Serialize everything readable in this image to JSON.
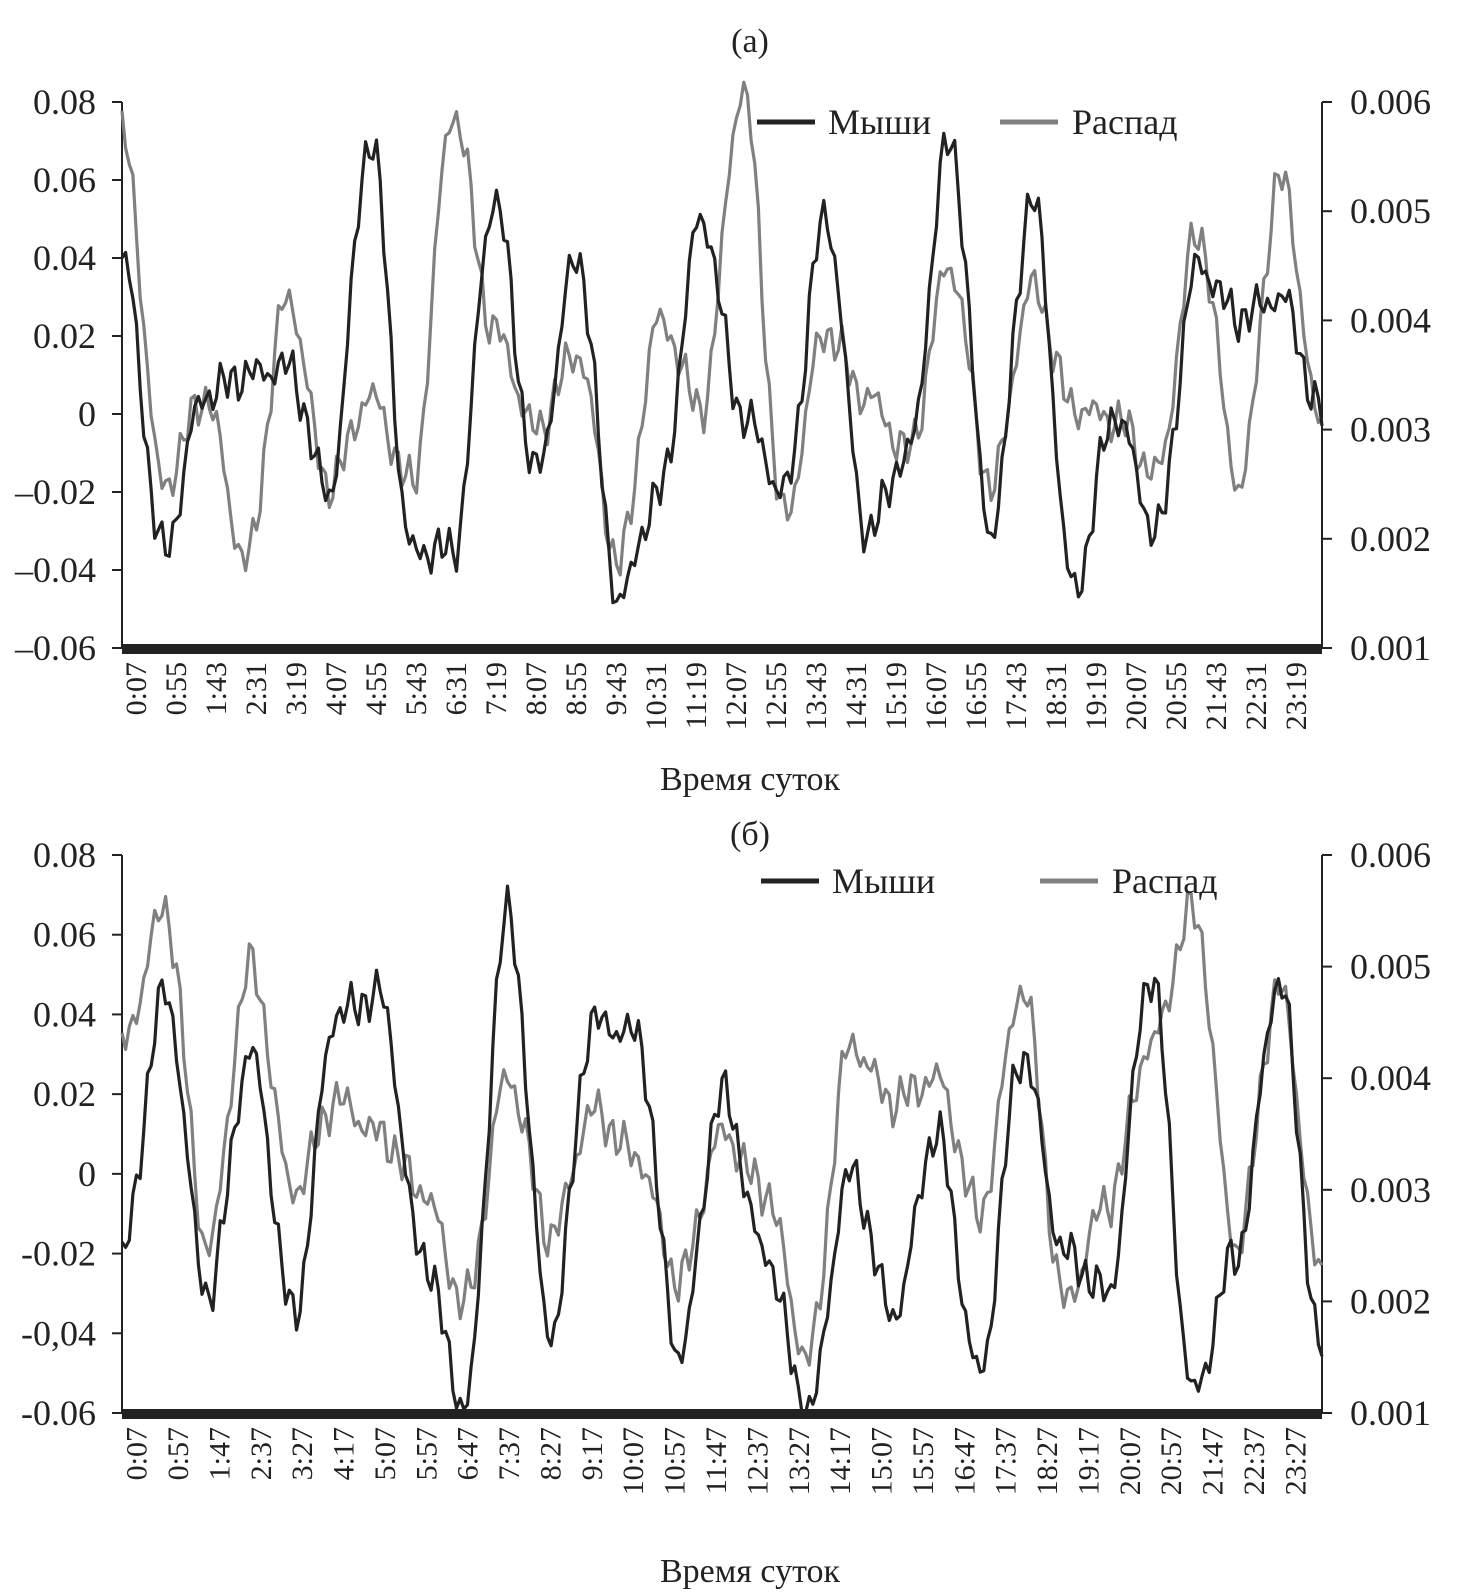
{
  "chart_data": [
    {
      "type": "line",
      "panel_label": "(а)",
      "xlabel": "Время суток",
      "x_tick_labels": [
        "0:07",
        "0:55",
        "1:43",
        "2:31",
        "3:19",
        "4:07",
        "4:55",
        "5:43",
        "6:31",
        "7:19",
        "8:07",
        "8:55",
        "9:43",
        "10:31",
        "11:19",
        "12:07",
        "12:55",
        "13:43",
        "14:31",
        "15:19",
        "16:07",
        "16:55",
        "17:43",
        "18:31",
        "19:19",
        "20:07",
        "20:55",
        "21:43",
        "22:31",
        "23:19"
      ],
      "y_left": {
        "range": [
          -0.06,
          0.08
        ],
        "ticks": [
          0.08,
          0.06,
          0.04,
          0.02,
          0,
          -0.02,
          -0.04,
          -0.06
        ],
        "tick_labels": [
          "0.08",
          "0.06",
          "0.04",
          "0.02",
          "0",
          "–0.02",
          "–0.04",
          "–0.06"
        ]
      },
      "y_right": {
        "range": [
          0.001,
          0.006
        ],
        "ticks": [
          0.006,
          0.005,
          0.004,
          0.003,
          0.002,
          0.001
        ],
        "tick_labels": [
          "0.006",
          "0.005",
          "0.004",
          "0.003",
          "0.002",
          "0.001"
        ]
      },
      "legend_position": "top-right",
      "series": [
        {
          "name": "Мыши",
          "axis": "left",
          "color": "#222222",
          "x": [
            "0:07",
            "0:55",
            "1:43",
            "2:31",
            "3:19",
            "4:07",
            "4:55",
            "5:43",
            "6:31",
            "7:19",
            "8:07",
            "8:55",
            "9:43",
            "10:31",
            "11:19",
            "12:07",
            "12:55",
            "13:43",
            "14:31",
            "15:19",
            "16:07",
            "16:55",
            "17:43",
            "18:31",
            "19:19",
            "20:07",
            "20:55",
            "21:43",
            "22:31",
            "23:19"
          ],
          "values": [
            0.04,
            -0.035,
            0.005,
            0.01,
            0.012,
            -0.02,
            0.07,
            -0.035,
            -0.035,
            0.055,
            -0.015,
            0.04,
            -0.047,
            -0.02,
            0.05,
            0.0,
            -0.02,
            0.05,
            -0.03,
            -0.01,
            0.07,
            -0.03,
            0.055,
            -0.045,
            0.0,
            -0.03,
            0.038,
            0.025,
            0.03,
            0.0
          ]
        },
        {
          "name": "Распад",
          "axis": "right",
          "color": "#808080",
          "x": [
            "0:07",
            "0:55",
            "1:43",
            "2:31",
            "3:19",
            "4:07",
            "4:55",
            "5:43",
            "6:31",
            "7:19",
            "8:07",
            "8:55",
            "9:43",
            "10:31",
            "11:19",
            "12:07",
            "12:55",
            "13:43",
            "14:31",
            "15:19",
            "16:07",
            "16:55",
            "17:43",
            "18:31",
            "19:19",
            "20:07",
            "20:55",
            "21:43",
            "22:31",
            "23:19"
          ],
          "values": [
            0.0057,
            0.0025,
            0.0033,
            0.0018,
            0.0042,
            0.0025,
            0.0033,
            0.0025,
            0.0059,
            0.0039,
            0.003,
            0.0037,
            0.0018,
            0.004,
            0.0032,
            0.0061,
            0.0022,
            0.0039,
            0.0033,
            0.0028,
            0.0045,
            0.0025,
            0.0043,
            0.0032,
            0.0031,
            0.0026,
            0.0048,
            0.0025,
            0.0053,
            0.003
          ]
        }
      ]
    },
    {
      "type": "line",
      "panel_label": "(б)",
      "xlabel": "Время суток",
      "x_tick_labels": [
        "0:07",
        "0:57",
        "1:47",
        "2:37",
        "3:27",
        "4:17",
        "5:07",
        "5:57",
        "6:47",
        "7:37",
        "8:27",
        "9:17",
        "10:07",
        "10:57",
        "11:47",
        "12:37",
        "13:27",
        "14:17",
        "15:07",
        "15:57",
        "16:47",
        "17:37",
        "18:27",
        "19:17",
        "20:07",
        "20:57",
        "21:47",
        "22:37",
        "23:27"
      ],
      "y_left": {
        "range": [
          -0.06,
          0.08
        ],
        "ticks": [
          0.08,
          0.06,
          0.04,
          0.02,
          0,
          -0.02,
          -0.04,
          -0.06
        ],
        "tick_labels": [
          "0.08",
          "0.06",
          "0.04",
          "0.02",
          "0",
          "-0.02",
          "-0,04",
          "-0.06"
        ]
      },
      "y_right": {
        "range": [
          0.001,
          0.006
        ],
        "ticks": [
          0.006,
          0.005,
          0.004,
          0.003,
          0.002,
          0.001
        ],
        "tick_labels": [
          "0.006",
          "0.005",
          "0.004",
          "0.003",
          "0.002",
          "0.001"
        ]
      },
      "legend_position": "top-right",
      "series": [
        {
          "name": "Мыши",
          "axis": "left",
          "color": "#222222",
          "x": [
            "0:07",
            "0:57",
            "1:47",
            "2:37",
            "3:27",
            "4:17",
            "5:07",
            "5:57",
            "6:47",
            "7:37",
            "8:27",
            "9:17",
            "10:07",
            "10:57",
            "11:47",
            "12:37",
            "13:27",
            "14:17",
            "15:07",
            "15:57",
            "16:47",
            "17:37",
            "18:27",
            "19:17",
            "20:07",
            "20:57",
            "21:47",
            "22:37",
            "23:27"
          ],
          "values": [
            -0.02,
            0.045,
            -0.03,
            0.03,
            -0.035,
            0.04,
            0.045,
            -0.02,
            -0.058,
            0.065,
            -0.04,
            0.038,
            0.035,
            -0.045,
            0.02,
            -0.02,
            -0.06,
            0.0,
            -0.035,
            0.01,
            -0.05,
            0.03,
            -0.02,
            -0.03,
            0.05,
            -0.055,
            -0.02,
            0.048,
            -0.045
          ]
        },
        {
          "name": "Распад",
          "axis": "right",
          "color": "#808080",
          "x": [
            "0:07",
            "0:57",
            "1:47",
            "2:37",
            "3:27",
            "4:17",
            "5:07",
            "5:57",
            "6:47",
            "7:37",
            "8:27",
            "9:17",
            "10:07",
            "10:57",
            "11:47",
            "12:37",
            "13:27",
            "14:17",
            "15:07",
            "15:57",
            "16:47",
            "17:37",
            "18:27",
            "19:17",
            "20:07",
            "20:57",
            "21:47",
            "22:37",
            "23:27"
          ],
          "values": [
            0.0043,
            0.0055,
            0.0025,
            0.005,
            0.003,
            0.0038,
            0.0035,
            0.003,
            0.002,
            0.004,
            0.0026,
            0.0037,
            0.0033,
            0.0022,
            0.0035,
            0.003,
            0.0015,
            0.0043,
            0.0038,
            0.004,
            0.0028,
            0.0048,
            0.002,
            0.0029,
            0.0043,
            0.0055,
            0.0025,
            0.0048,
            0.0022
          ]
        }
      ]
    }
  ]
}
